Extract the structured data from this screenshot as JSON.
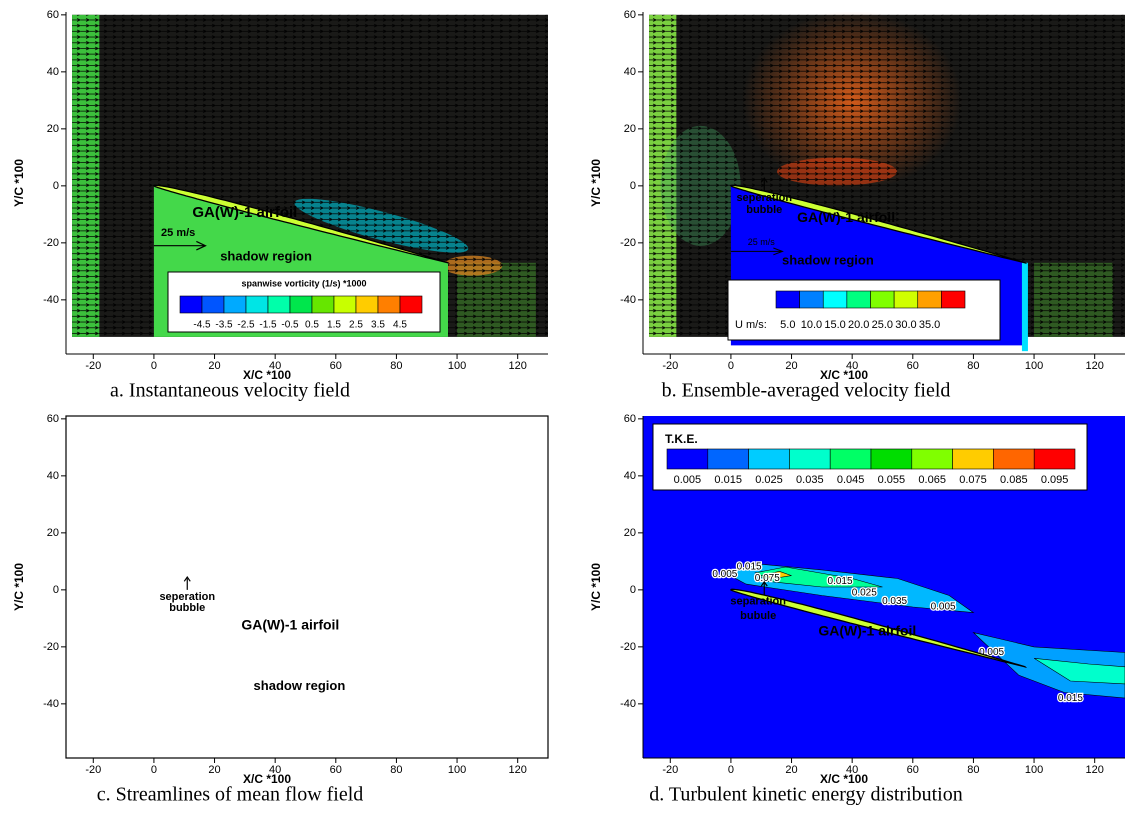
{
  "panels": [
    {
      "caption": "a. Instantaneous velocity field",
      "xlabel": "X/C *100",
      "ylabel": "Y/C *100",
      "xlim": [
        -29,
        130
      ],
      "ylim": [
        -59,
        61
      ],
      "xticks": [
        -20,
        0,
        20,
        40,
        60,
        80,
        100,
        120
      ],
      "yticks": [
        -40,
        -20,
        0,
        20,
        40,
        60
      ],
      "annotations": [
        "GA(W)-1 airfoil",
        "shadow region",
        "25 m/s"
      ],
      "legend": {
        "title": "spanwise vorticity  (1/s) *1000",
        "labels": [
          -4.5,
          -3.5,
          -2.5,
          -1.5,
          -0.5,
          0.5,
          1.5,
          2.5,
          3.5,
          4.5
        ],
        "colors": [
          "#0000ff",
          "#0055ff",
          "#00aaff",
          "#00e5e5",
          "#00ffaa",
          "#00e64c",
          "#66e600",
          "#c8ff00",
          "#ffcc00",
          "#ff7f00",
          "#ff0000"
        ]
      }
    },
    {
      "caption": "b. Ensemble-averaged velocity field",
      "xlabel": "X/C *100",
      "ylabel": "Y/C *100",
      "xlim": [
        -29,
        130
      ],
      "ylim": [
        -59,
        61
      ],
      "xticks": [
        -20,
        0,
        20,
        40,
        60,
        80,
        100,
        120
      ],
      "yticks": [
        -40,
        -20,
        0,
        20,
        40,
        60
      ],
      "annotations": [
        "seperation",
        "bubble",
        "GA(W)-1 airfoil",
        "25 m/s",
        "shadow region"
      ],
      "legend": {
        "title": "U m/s:",
        "labels": [
          {
            "value": 5,
            "label": "5.0"
          },
          {
            "value": 10,
            "label": "10.0"
          },
          {
            "value": 15,
            "label": "15.0"
          },
          {
            "value": 20,
            "label": "20.0"
          },
          {
            "value": 25,
            "label": "25.0"
          },
          {
            "value": 30,
            "label": "30.0"
          },
          {
            "value": 35,
            "label": "35.0"
          }
        ],
        "colors": [
          "#0000ff",
          "#0080ff",
          "#00ffff",
          "#00ff80",
          "#80ff00",
          "#d0ff00",
          "#ffa000",
          "#ff0000"
        ]
      }
    },
    {
      "caption": "c. Streamlines of mean flow field",
      "xlabel": "X/C *100",
      "ylabel": "Y/C *100",
      "xlim": [
        -29,
        130
      ],
      "ylim": [
        -59,
        61
      ],
      "xticks": [
        -20,
        0,
        20,
        40,
        60,
        80,
        100,
        120
      ],
      "yticks": [
        -40,
        -20,
        0,
        20,
        40,
        60
      ],
      "annotations": [
        "seperation",
        "bubble",
        "GA(W)-1 airfoil",
        "shadow region"
      ]
    },
    {
      "caption": "d. Turbulent kinetic energy distribution",
      "xlabel": "X/C *100",
      "ylabel": "Y/C *100",
      "xlim": [
        -29,
        130
      ],
      "ylim": [
        -59,
        61
      ],
      "xticks": [
        -20,
        0,
        20,
        40,
        60,
        80,
        100,
        120
      ],
      "yticks": [
        -40,
        -20,
        0,
        20,
        40,
        60
      ],
      "annotations": [
        "separation",
        "bubule",
        "GA(W)-1 airfoil"
      ],
      "contour_labels": [
        0.005,
        0.015,
        0.075,
        0.015,
        0.025,
        0.035,
        0.005,
        0.005,
        0.015
      ],
      "legend": {
        "title": "T.K.E.",
        "labels": [
          0.005,
          0.015,
          0.025,
          0.035,
          0.045,
          0.055,
          0.065,
          0.075,
          0.085,
          0.095
        ],
        "colors": [
          "#0000ff",
          "#0066ff",
          "#00ccff",
          "#00ffcc",
          "#00ff66",
          "#00dd00",
          "#80ff00",
          "#ffcc00",
          "#ff6600",
          "#ff0000"
        ]
      }
    }
  ]
}
